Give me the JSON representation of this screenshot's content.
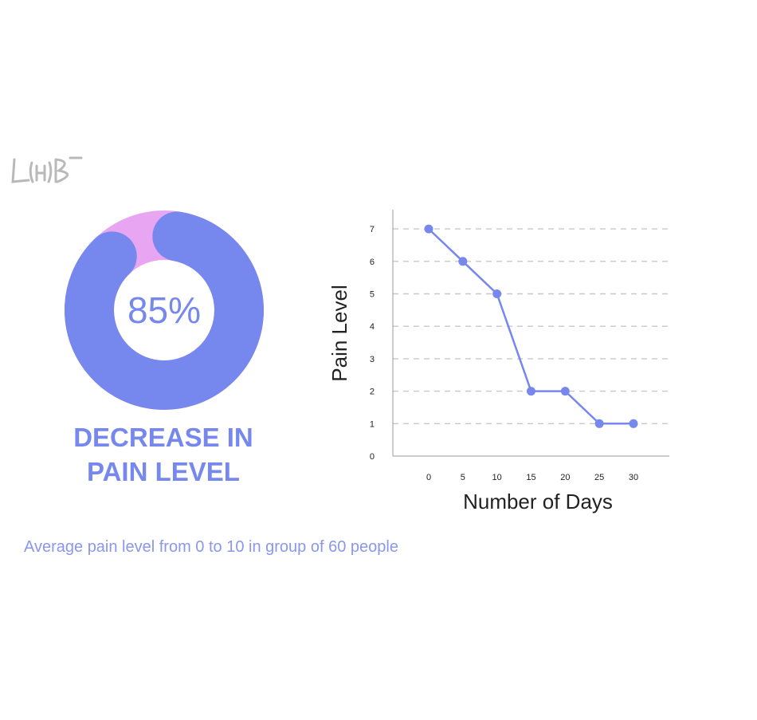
{
  "logo": {
    "text": "LAB"
  },
  "donut": {
    "percent_label": "85%",
    "colors": {
      "primary": "#7688ee",
      "secondary": "#e8a5f2"
    }
  },
  "headline": {
    "line1": "DECREASE IN",
    "line2": "PAIN LEVEL"
  },
  "footnote": "Average pain level from 0 to 10 in group of 60 people",
  "chart_data": {
    "type": "line",
    "x": [
      0,
      5,
      10,
      15,
      20,
      25,
      30
    ],
    "values": [
      7,
      6,
      5,
      2,
      2,
      1,
      1
    ],
    "xlabel": "Number of Days",
    "ylabel": "Pain Level",
    "x_ticks": [
      "0",
      "5",
      "10",
      "15",
      "20",
      "25",
      "30"
    ],
    "y_ticks": [
      "0",
      "1",
      "2",
      "3",
      "4",
      "5",
      "6",
      "7"
    ],
    "ylim": [
      0,
      7
    ],
    "grid": "horizontal dashed",
    "color": "#7688ee"
  }
}
